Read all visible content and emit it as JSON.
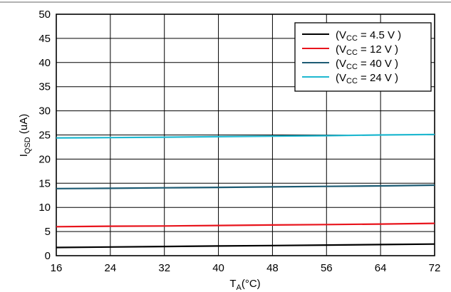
{
  "chart_data": {
    "type": "line",
    "xlabel": {
      "main": "T",
      "sub": "A",
      "rest": "(°C)"
    },
    "ylabel": {
      "main": "I",
      "sub": "QSD",
      "rest": " (uA)"
    },
    "xlim": [
      16,
      72
    ],
    "ylim": [
      0,
      50
    ],
    "xticks": [
      "16",
      "24",
      "32",
      "40",
      "48",
      "56",
      "64",
      "72"
    ],
    "yticks": [
      "0",
      "5",
      "10",
      "15",
      "20",
      "25",
      "30",
      "35",
      "40",
      "45",
      "50"
    ],
    "grid": true,
    "legend_position": "top-right",
    "series": [
      {
        "name": "(VCC = 4.5 V )",
        "label": {
          "pre": "(V",
          "sub": "CC",
          "post": " = 4.5 V )"
        },
        "color": "#000000",
        "x": [
          16,
          24,
          32,
          40,
          48,
          56,
          64,
          72
        ],
        "y": [
          1.7,
          1.8,
          1.9,
          2.0,
          2.1,
          2.2,
          2.3,
          2.4
        ]
      },
      {
        "name": "(VCC = 12 V )",
        "label": {
          "pre": "(V",
          "sub": "CC",
          "post": " = 12 V )"
        },
        "color": "#e8141c",
        "x": [
          16,
          24,
          32,
          40,
          48,
          56,
          64,
          72
        ],
        "y": [
          6.0,
          6.1,
          6.15,
          6.25,
          6.35,
          6.45,
          6.55,
          6.7
        ]
      },
      {
        "name": "(VCC = 40 V )",
        "label": {
          "pre": "(V",
          "sub": "CC",
          "post": " = 40 V )"
        },
        "color": "#1d5b73",
        "x": [
          16,
          24,
          32,
          40,
          48,
          56,
          64,
          72
        ],
        "y": [
          13.9,
          13.95,
          14.05,
          14.15,
          14.25,
          14.35,
          14.45,
          14.6
        ]
      },
      {
        "name": "(VCC = 24 V )",
        "label": {
          "pre": "(V",
          "sub": "CC",
          "post": " = 24 V )"
        },
        "color": "#1fb8d0",
        "x": [
          16,
          24,
          32,
          40,
          48,
          56,
          64,
          72
        ],
        "y": [
          24.4,
          24.45,
          24.55,
          24.65,
          24.75,
          24.85,
          25.0,
          25.1
        ]
      }
    ]
  }
}
